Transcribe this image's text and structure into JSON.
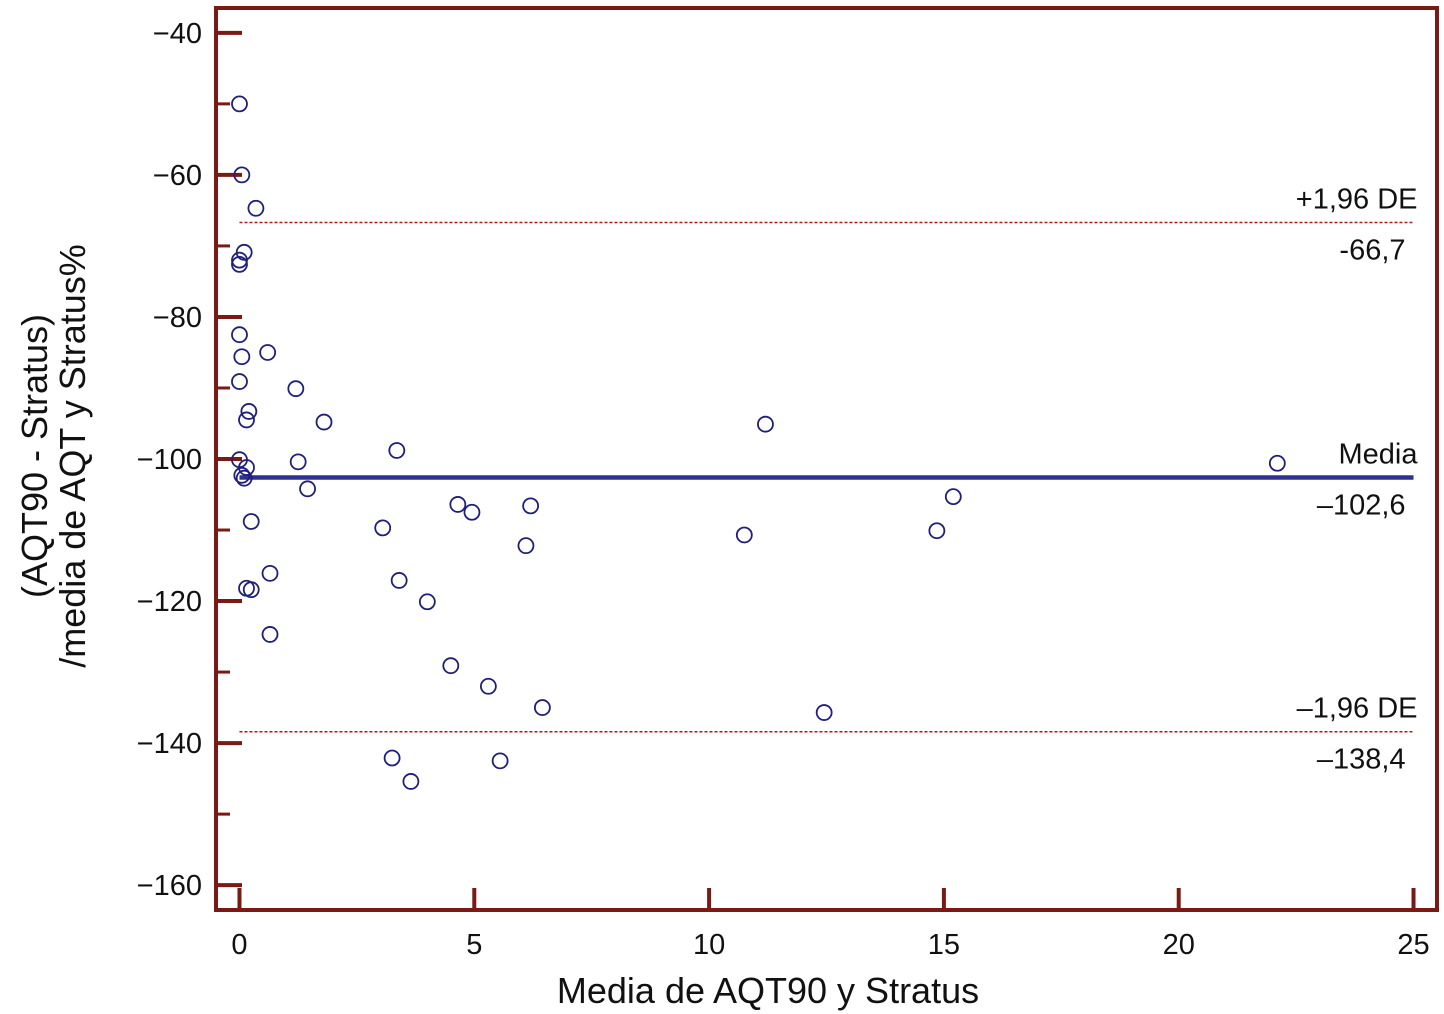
{
  "chart_data": {
    "type": "scatter",
    "xlabel": "Media de AQT90 y Stratus",
    "ylabel_lines": [
      "(AQT90 - Stratus)",
      "/media de AQT y Stratus%"
    ],
    "xlim": [
      -0.5,
      25.5
    ],
    "ylim": [
      -163.5,
      -36.5
    ],
    "x_ticks": [
      0,
      5,
      10,
      15,
      20,
      25
    ],
    "x_tick_labels": [
      "0",
      "5",
      "10",
      "15",
      "20",
      "25"
    ],
    "y_ticks": [
      -40,
      -60,
      -80,
      -100,
      -120,
      -140,
      -160
    ],
    "y_tick_labels": [
      "−40",
      "−60",
      "−80",
      "−100",
      "−120",
      "−140",
      "−160"
    ],
    "y_minor_ticks": [
      -50,
      -70,
      -90,
      -110,
      -130,
      -150
    ],
    "grid": false,
    "reference_lines": [
      {
        "label": "+1,96 DE",
        "value_label": "-66,7",
        "y": -66.7,
        "style": "dashed",
        "color": "#b01818"
      },
      {
        "label": "Media",
        "value_label": "–102,6",
        "y": -102.6,
        "style": "solid",
        "color": "#2e3190"
      },
      {
        "label": "–1,96 DE",
        "value_label": "–138,4",
        "y": -138.4,
        "style": "dashed",
        "color": "#b01818"
      }
    ],
    "points": [
      {
        "x": 0.0,
        "y": -50
      },
      {
        "x": 0.05,
        "y": -60
      },
      {
        "x": 0.35,
        "y": -64.7
      },
      {
        "x": 0.1,
        "y": -70.9
      },
      {
        "x": 0.0,
        "y": -72
      },
      {
        "x": 0.0,
        "y": -72.6
      },
      {
        "x": 0.0,
        "y": -82.5
      },
      {
        "x": 0.05,
        "y": -85.6
      },
      {
        "x": 0.6,
        "y": -85
      },
      {
        "x": 0.0,
        "y": -89.1
      },
      {
        "x": 1.2,
        "y": -90.1
      },
      {
        "x": 0.2,
        "y": -93.3
      },
      {
        "x": 0.15,
        "y": -94.5
      },
      {
        "x": 1.8,
        "y": -94.8
      },
      {
        "x": 11.2,
        "y": -95.1
      },
      {
        "x": 3.35,
        "y": -98.8
      },
      {
        "x": 0.0,
        "y": -100.1
      },
      {
        "x": 1.25,
        "y": -100.4
      },
      {
        "x": 0.15,
        "y": -101.2
      },
      {
        "x": 0.05,
        "y": -102.3
      },
      {
        "x": 0.1,
        "y": -102.7
      },
      {
        "x": 22.1,
        "y": -100.6
      },
      {
        "x": 1.45,
        "y": -104.2
      },
      {
        "x": 15.2,
        "y": -105.3
      },
      {
        "x": 4.65,
        "y": -106.4
      },
      {
        "x": 6.2,
        "y": -106.6
      },
      {
        "x": 4.95,
        "y": -107.5
      },
      {
        "x": 0.25,
        "y": -108.8
      },
      {
        "x": 3.05,
        "y": -109.7
      },
      {
        "x": 14.85,
        "y": -110.1
      },
      {
        "x": 10.75,
        "y": -110.7
      },
      {
        "x": 6.1,
        "y": -112.2
      },
      {
        "x": 0.65,
        "y": -116.1
      },
      {
        "x": 3.4,
        "y": -117.1
      },
      {
        "x": 0.15,
        "y": -118.2
      },
      {
        "x": 0.25,
        "y": -118.4
      },
      {
        "x": 4.0,
        "y": -120.1
      },
      {
        "x": 0.65,
        "y": -124.7
      },
      {
        "x": 4.5,
        "y": -129.1
      },
      {
        "x": 5.3,
        "y": -132
      },
      {
        "x": 6.45,
        "y": -135
      },
      {
        "x": 12.45,
        "y": -135.7
      },
      {
        "x": 3.25,
        "y": -142.1
      },
      {
        "x": 5.55,
        "y": -142.5
      },
      {
        "x": 3.65,
        "y": -145.4
      }
    ],
    "colors": {
      "frame": "#7a1a14",
      "points": "#1f1f7a",
      "mean_line": "#2e3190",
      "limit_lines": "#b01818"
    }
  }
}
